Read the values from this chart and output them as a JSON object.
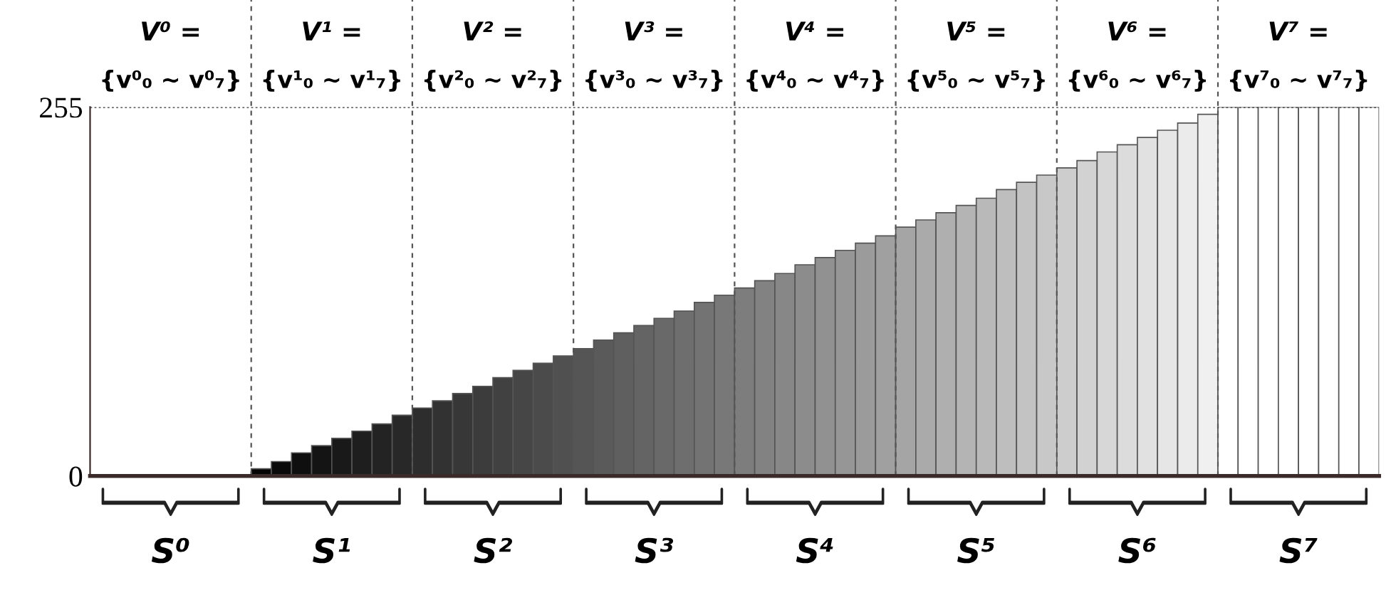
{
  "chart_data": {
    "type": "bar",
    "relative": false,
    "categories": [
      null,
      null,
      null,
      null,
      null,
      null,
      null,
      null,
      null,
      null,
      null,
      null,
      null,
      null,
      null,
      null,
      null,
      null,
      null,
      null,
      null,
      null,
      null,
      null,
      null,
      null,
      null,
      null,
      null,
      null,
      null,
      null,
      null,
      null,
      null,
      null,
      null,
      null,
      null,
      null,
      null,
      null,
      null,
      null,
      null,
      null,
      null,
      null,
      null,
      null,
      null,
      null,
      null,
      null,
      null,
      null,
      null,
      null,
      null,
      null,
      null,
      null,
      null,
      null
    ],
    "values": [
      0,
      0,
      0,
      0,
      0,
      0,
      0,
      0,
      5,
      10,
      16,
      21,
      26,
      31,
      36,
      42,
      47,
      52,
      57,
      62,
      68,
      73,
      78,
      83,
      88,
      94,
      99,
      104,
      109,
      114,
      120,
      125,
      130,
      135,
      140,
      146,
      151,
      156,
      161,
      166,
      172,
      177,
      182,
      187,
      192,
      198,
      203,
      208,
      213,
      218,
      224,
      229,
      234,
      239,
      244,
      250,
      255,
      255,
      255,
      255,
      255,
      255,
      255,
      255
    ],
    "colors": [
      "#ffffff",
      "#ffffff",
      "#ffffff",
      "#ffffff",
      "#ffffff",
      "#ffffff",
      "#ffffff",
      "#ffffff",
      "#050505",
      "#0a0a0a",
      "#0f0f0f",
      "#141414",
      "#191919",
      "#1e1e1e",
      "#232323",
      "#282828",
      "#2d2d2d",
      "#323232",
      "#373737",
      "#3c3c3c",
      "#414141",
      "#464646",
      "#4b4b4b",
      "#505050",
      "#555555",
      "#5a5a5a",
      "#5f5f5f",
      "#646464",
      "#696969",
      "#6e6e6e",
      "#737373",
      "#787878",
      "#7d7d7d",
      "#828282",
      "#878787",
      "#8c8c8c",
      "#919191",
      "#969696",
      "#9b9b9b",
      "#a0a0a0",
      "#a5a5a5",
      "#aaaaaa",
      "#afafaf",
      "#b4b4b4",
      "#b9b9b9",
      "#bebebe",
      "#c3c3c3",
      "#c8c8c8",
      "#cdcdcd",
      "#d2d2d2",
      "#d7d7d7",
      "#dcdcdc",
      "#e1e1e1",
      "#e6e6e6",
      "#ebebeb",
      "#f0f0f0",
      "#ffffff",
      "#ffffff",
      "#ffffff",
      "#ffffff",
      "#ffffff",
      "#ffffff",
      "#ffffff",
      "#ffffff"
    ],
    "ylim": [
      0,
      255
    ],
    "yticks": [
      0,
      255
    ],
    "tick_labels": "y",
    "grid": false,
    "ref_lines": [
      {
        "axis": "y",
        "value": 255,
        "line_style": "dotted",
        "color": "#333333"
      }
    ],
    "annotations": [
      "V⁰ =",
      "V¹ =",
      "V² =",
      "V³ =",
      "V⁴ =",
      "V⁵ =",
      "V⁶ =",
      "V⁷ =",
      "{v⁰₀ ~ v⁰₇}",
      "{v¹₀ ~ v¹₇}",
      "{v²₀ ~ v²₇}",
      "{v³₀ ~ v³₇}",
      "{v⁴₀ ~ v⁴₇}",
      "{v⁵₀ ~ v⁵₇}",
      "{v⁶₀ ~ v⁶₇}",
      "{v⁷₀ ~ v⁷₇}",
      "S⁰",
      "S¹",
      "S²",
      "S³",
      "S⁴",
      "S⁵",
      "S⁶",
      "S⁷"
    ]
  }
}
